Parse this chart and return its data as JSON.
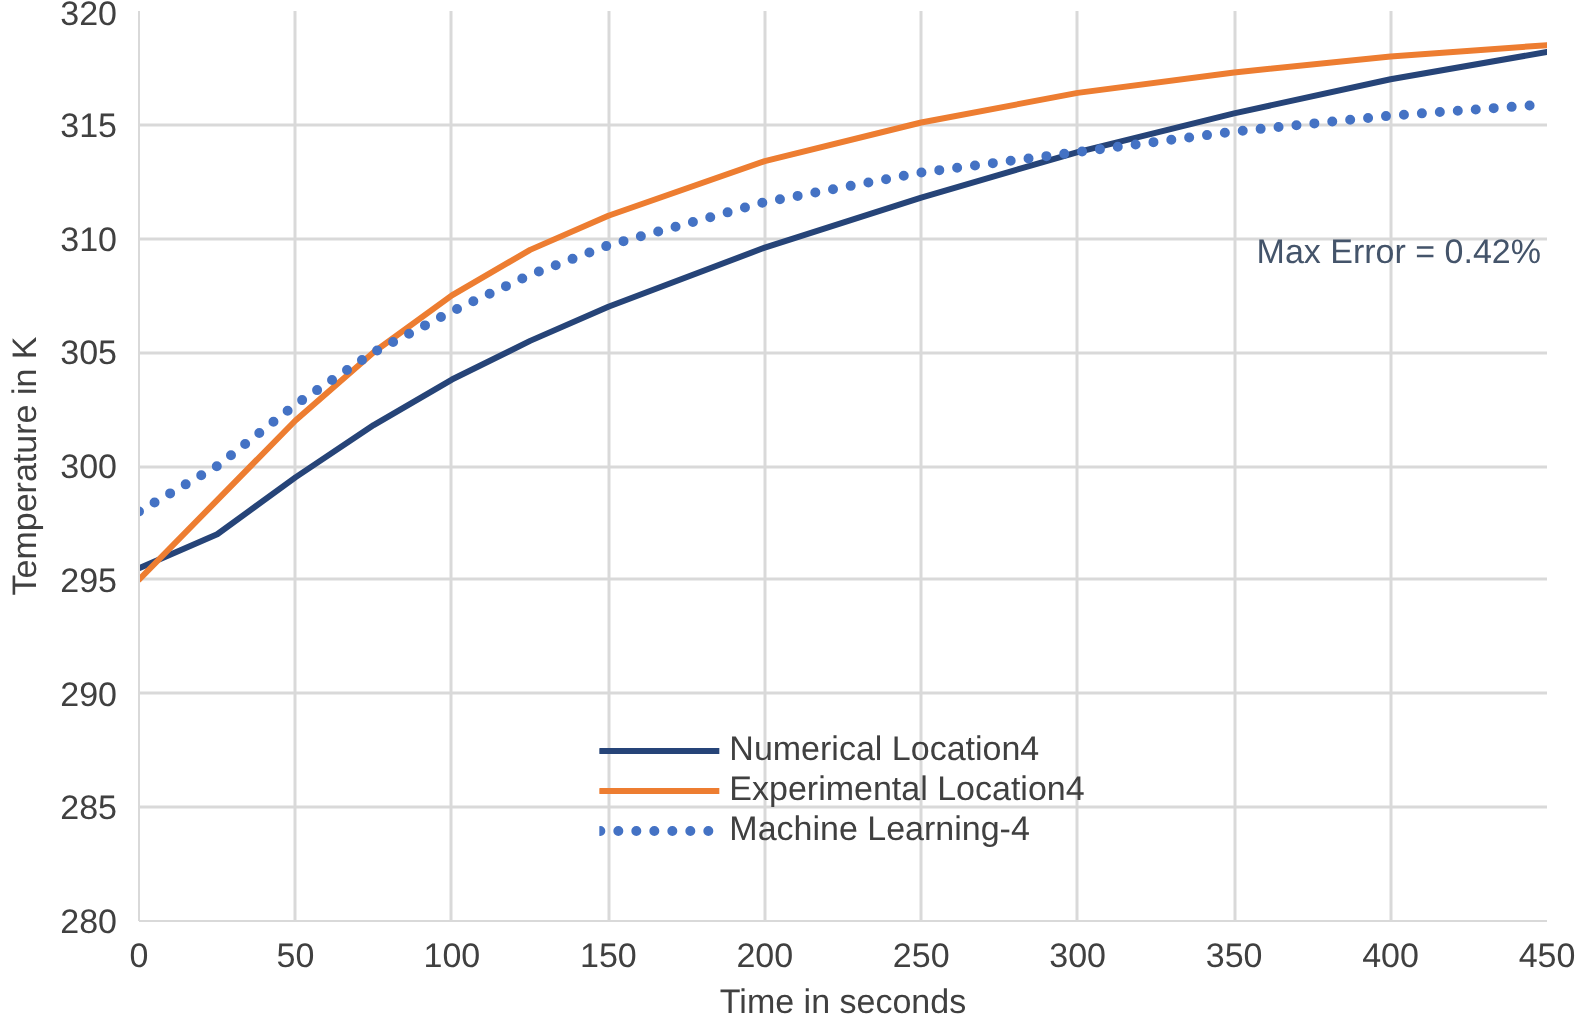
{
  "chart_data": {
    "type": "line",
    "xlabel": "Time in seconds",
    "ylabel": "Temperature in K",
    "x": [
      0,
      25,
      50,
      75,
      100,
      125,
      150,
      200,
      250,
      300,
      350,
      400,
      450
    ],
    "series": [
      {
        "name": "Numerical Location4",
        "color": "#264478",
        "line_style": "solid",
        "values": [
          295.5,
          297,
          299.5,
          301.8,
          303.8,
          305.5,
          307,
          309.6,
          311.8,
          313.8,
          315.5,
          317,
          318.2
        ]
      },
      {
        "name": "Experimental Location4",
        "color": "#ed7d31",
        "line_style": "solid",
        "values": [
          295,
          298.5,
          302,
          305,
          307.5,
          309.5,
          311,
          313.4,
          315.1,
          316.4,
          317.3,
          318,
          318.5
        ]
      },
      {
        "name": "Machine Learning-4",
        "color": "#4472c4",
        "line_style": "dotted",
        "values": [
          298,
          300,
          302.7,
          305,
          306.8,
          308.4,
          309.7,
          311.6,
          312.9,
          313.8,
          314.7,
          315.4,
          315.9
        ]
      }
    ],
    "xlim": [
      0,
      450
    ],
    "xticks": [
      0,
      50,
      100,
      150,
      200,
      250,
      300,
      350,
      400,
      450
    ],
    "ylim": [
      280,
      320
    ],
    "yticks": [
      280,
      285,
      290,
      295,
      300,
      305,
      310,
      315,
      320
    ],
    "grid": true,
    "legend": "bottom",
    "marker": "none",
    "annotations": [
      "Max Error = 0.42%"
    ]
  }
}
